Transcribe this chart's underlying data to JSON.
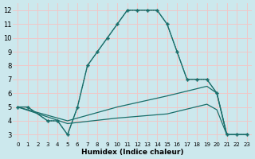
{
  "background_color": "#cce8ed",
  "grid_color": "#f0c8c8",
  "line_color": "#1a6e6a",
  "xlabel": "Humidex (Indice chaleur)",
  "xlim": [
    -0.5,
    23.5
  ],
  "ylim": [
    2.5,
    12.5
  ],
  "yticks": [
    3,
    4,
    5,
    6,
    7,
    8,
    9,
    10,
    11,
    12
  ],
  "xticks": [
    0,
    1,
    2,
    3,
    4,
    5,
    6,
    7,
    8,
    9,
    10,
    11,
    12,
    13,
    14,
    15,
    16,
    17,
    18,
    19,
    20,
    21,
    22,
    23
  ],
  "lines": [
    {
      "x": [
        0,
        1,
        3,
        4,
        5,
        6,
        7,
        8,
        9,
        10,
        11,
        12,
        13,
        14,
        15,
        16,
        17,
        18,
        19,
        20,
        21,
        22,
        23
      ],
      "y": [
        5,
        5,
        4,
        4,
        3,
        5,
        8,
        9,
        10,
        11,
        12,
        12,
        12,
        12,
        11,
        9,
        7,
        7,
        7,
        6,
        3,
        3,
        3
      ],
      "style": "-",
      "marker": "+",
      "markersize": 3.5,
      "linewidth": 1.0,
      "markeredgewidth": 1.0
    },
    {
      "x": [
        0,
        1,
        3,
        4,
        5,
        6,
        7,
        8,
        9,
        10,
        11,
        12,
        13,
        14,
        15,
        16,
        17,
        18,
        19,
        20,
        21,
        22,
        23
      ],
      "y": [
        5,
        5,
        4,
        4,
        3,
        5,
        8,
        9,
        10,
        11,
        12,
        12,
        12,
        12,
        11,
        9,
        7,
        7,
        7,
        6,
        3,
        3,
        3
      ],
      "style": ":",
      "marker": "+",
      "markersize": 3.5,
      "linewidth": 0.8,
      "markeredgewidth": 1.0
    },
    {
      "x": [
        0,
        5,
        10,
        15,
        19,
        20,
        21,
        22,
        23
      ],
      "y": [
        5,
        4,
        5,
        5.8,
        6.5,
        6,
        3,
        3,
        3
      ],
      "style": "-",
      "marker": null,
      "markersize": 0,
      "linewidth": 0.9,
      "markeredgewidth": 0.8
    },
    {
      "x": [
        0,
        5,
        10,
        15,
        19,
        20,
        21,
        22,
        23
      ],
      "y": [
        5,
        3.8,
        4.2,
        4.5,
        5.2,
        4.8,
        3,
        3,
        3
      ],
      "style": "-",
      "marker": null,
      "markersize": 0,
      "linewidth": 0.9,
      "markeredgewidth": 0.8
    }
  ]
}
